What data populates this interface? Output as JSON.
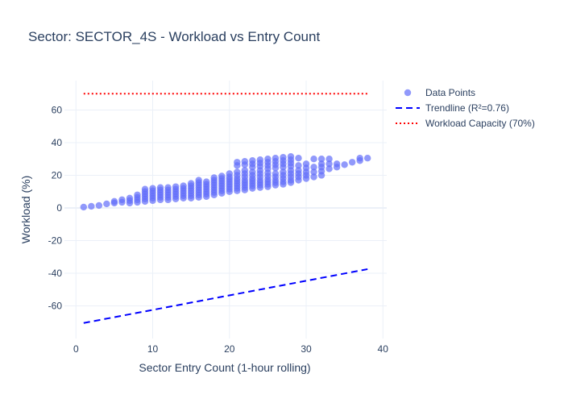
{
  "chart_data": {
    "type": "scatter",
    "title": "Sector: SECTOR_4S - Workload vs Entry Count",
    "xlabel": "Sector Entry Count (1-hour rolling)",
    "ylabel": "Workload (%)",
    "xlim": [
      -1.5,
      40.5
    ],
    "ylim": [
      -80,
      78
    ],
    "x_ticks": [
      0,
      10,
      20,
      30,
      40
    ],
    "y_ticks": [
      -60,
      -40,
      -20,
      0,
      20,
      40,
      60
    ],
    "grid": true,
    "legend_position": "top-right",
    "colors": {
      "points": "#636efa",
      "trendline": "#0000ff",
      "capacity": "#ff0000"
    },
    "series": [
      {
        "name": "Data Points",
        "mode": "markers",
        "points": [
          [
            1,
            0.5
          ],
          [
            2,
            1
          ],
          [
            3,
            1.5
          ],
          [
            4,
            2.5
          ],
          [
            5,
            3
          ],
          [
            5,
            4
          ],
          [
            6,
            3.5
          ],
          [
            6,
            5
          ],
          [
            7,
            3
          ],
          [
            7,
            4.5
          ],
          [
            7,
            6
          ],
          [
            8,
            3.5
          ],
          [
            8,
            5
          ],
          [
            8,
            6.5
          ],
          [
            8,
            8
          ],
          [
            9,
            4
          ],
          [
            9,
            5.5
          ],
          [
            9,
            7
          ],
          [
            9,
            8.5
          ],
          [
            9,
            10
          ],
          [
            9,
            11.5
          ],
          [
            10,
            4.5
          ],
          [
            10,
            6
          ],
          [
            10,
            7.5
          ],
          [
            10,
            9
          ],
          [
            10,
            10.5
          ],
          [
            10,
            12
          ],
          [
            11,
            5
          ],
          [
            11,
            6.5
          ],
          [
            11,
            8
          ],
          [
            11,
            9.5
          ],
          [
            11,
            11
          ],
          [
            11,
            12.5
          ],
          [
            12,
            5
          ],
          [
            12,
            6.5
          ],
          [
            12,
            8
          ],
          [
            12,
            9.5
          ],
          [
            12,
            11
          ],
          [
            12,
            12.5
          ],
          [
            13,
            5.5
          ],
          [
            13,
            7
          ],
          [
            13,
            8.5
          ],
          [
            13,
            10
          ],
          [
            13,
            11.5
          ],
          [
            13,
            13
          ],
          [
            14,
            6
          ],
          [
            14,
            7.5
          ],
          [
            14,
            9
          ],
          [
            14,
            10.5
          ],
          [
            14,
            12
          ],
          [
            14,
            13.5
          ],
          [
            15,
            6
          ],
          [
            15,
            7.5
          ],
          [
            15,
            9
          ],
          [
            15,
            10.5
          ],
          [
            15,
            12
          ],
          [
            15,
            13.5
          ],
          [
            15,
            15
          ],
          [
            16,
            6.5
          ],
          [
            16,
            8
          ],
          [
            16,
            9.5
          ],
          [
            16,
            11
          ],
          [
            16,
            12.5
          ],
          [
            16,
            14
          ],
          [
            16,
            15.5
          ],
          [
            16,
            17
          ],
          [
            17,
            7
          ],
          [
            17,
            8.5
          ],
          [
            17,
            10
          ],
          [
            17,
            11.5
          ],
          [
            17,
            13
          ],
          [
            17,
            14.5
          ],
          [
            17,
            16
          ],
          [
            18,
            8
          ],
          [
            18,
            9.5
          ],
          [
            18,
            11
          ],
          [
            18,
            12.5
          ],
          [
            18,
            14
          ],
          [
            18,
            15.5
          ],
          [
            18,
            17
          ],
          [
            18,
            18.5
          ],
          [
            19,
            9
          ],
          [
            19,
            10.5
          ],
          [
            19,
            12
          ],
          [
            19,
            13.5
          ],
          [
            19,
            15
          ],
          [
            19,
            16.5
          ],
          [
            19,
            18
          ],
          [
            19,
            19.5
          ],
          [
            20,
            10
          ],
          [
            20,
            11.5
          ],
          [
            20,
            13
          ],
          [
            20,
            14.5
          ],
          [
            20,
            16
          ],
          [
            20,
            17.5
          ],
          [
            20,
            19
          ],
          [
            20,
            21
          ],
          [
            21,
            10.5
          ],
          [
            21,
            12
          ],
          [
            21,
            13.5
          ],
          [
            21,
            15
          ],
          [
            21,
            16.5
          ],
          [
            21,
            18
          ],
          [
            21,
            20
          ],
          [
            21,
            22
          ],
          [
            21,
            26
          ],
          [
            21,
            28
          ],
          [
            22,
            11
          ],
          [
            22,
            12.5
          ],
          [
            22,
            14
          ],
          [
            22,
            15.5
          ],
          [
            22,
            17
          ],
          [
            22,
            19
          ],
          [
            22,
            21
          ],
          [
            22,
            23
          ],
          [
            22,
            26.5
          ],
          [
            22,
            28.5
          ],
          [
            23,
            12
          ],
          [
            23,
            13.5
          ],
          [
            23,
            15
          ],
          [
            23,
            16.5
          ],
          [
            23,
            18
          ],
          [
            23,
            20
          ],
          [
            23,
            22
          ],
          [
            23,
            25
          ],
          [
            23,
            27
          ],
          [
            23,
            29
          ],
          [
            24,
            12.5
          ],
          [
            24,
            14
          ],
          [
            24,
            15.5
          ],
          [
            24,
            17
          ],
          [
            24,
            19
          ],
          [
            24,
            21
          ],
          [
            24,
            23
          ],
          [
            24,
            25.5
          ],
          [
            24,
            27.5
          ],
          [
            24,
            29.5
          ],
          [
            25,
            13
          ],
          [
            25,
            14.5
          ],
          [
            25,
            16
          ],
          [
            25,
            17.5
          ],
          [
            25,
            19.5
          ],
          [
            25,
            21.5
          ],
          [
            25,
            24
          ],
          [
            25,
            26
          ],
          [
            25,
            28
          ],
          [
            25,
            30
          ],
          [
            26,
            14
          ],
          [
            26,
            15.5
          ],
          [
            26,
            17
          ],
          [
            26,
            19
          ],
          [
            26,
            21
          ],
          [
            26,
            24.5
          ],
          [
            26,
            26.5
          ],
          [
            26,
            28.5
          ],
          [
            26,
            30.5
          ],
          [
            27,
            14.5
          ],
          [
            27,
            16
          ],
          [
            27,
            18
          ],
          [
            27,
            20
          ],
          [
            27,
            22
          ],
          [
            27,
            25
          ],
          [
            27,
            27
          ],
          [
            27,
            29
          ],
          [
            27,
            31
          ],
          [
            28,
            15.5
          ],
          [
            28,
            17
          ],
          [
            28,
            19
          ],
          [
            28,
            21
          ],
          [
            28,
            23
          ],
          [
            28,
            25.5
          ],
          [
            28,
            27.5
          ],
          [
            28,
            29.5
          ],
          [
            28,
            31.5
          ],
          [
            29,
            17
          ],
          [
            29,
            19
          ],
          [
            29,
            21
          ],
          [
            29,
            23
          ],
          [
            29,
            26
          ],
          [
            29,
            30.5
          ],
          [
            30,
            18
          ],
          [
            30,
            20
          ],
          [
            30,
            22
          ],
          [
            30,
            24.5
          ],
          [
            30,
            27
          ],
          [
            31,
            19
          ],
          [
            31,
            22
          ],
          [
            31,
            25
          ],
          [
            31,
            30
          ],
          [
            32,
            20
          ],
          [
            32,
            22.5
          ],
          [
            32,
            25
          ],
          [
            32,
            27
          ],
          [
            32,
            30
          ],
          [
            33,
            24
          ],
          [
            33,
            27
          ],
          [
            33,
            30
          ],
          [
            34,
            25
          ],
          [
            34,
            27
          ],
          [
            35,
            26.5
          ],
          [
            36,
            28
          ],
          [
            37,
            29
          ],
          [
            37,
            30.5
          ],
          [
            38,
            30.5
          ]
        ]
      },
      {
        "name": "Trendline (R²=0.76)",
        "mode": "line",
        "dash": "dash",
        "points": [
          [
            1,
            -70.5
          ],
          [
            38,
            -37.5
          ]
        ]
      },
      {
        "name": "Workload Capacity (70%)",
        "mode": "line",
        "dash": "dot",
        "points": [
          [
            1,
            70
          ],
          [
            38,
            70
          ]
        ]
      }
    ]
  }
}
